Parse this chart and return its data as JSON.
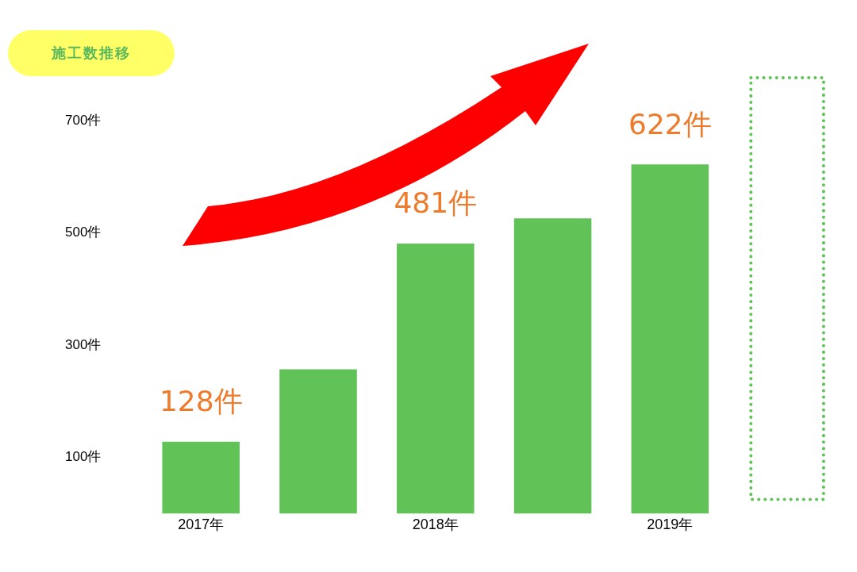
{
  "chart_data": {
    "type": "bar",
    "title": "施工数推移",
    "categories": [
      "2017年",
      null,
      "2018年",
      null,
      "2019年",
      null
    ],
    "values": [
      128,
      257,
      481,
      526,
      622,
      null
    ],
    "value_labels": [
      "128件",
      null,
      "481件",
      null,
      "622件",
      null
    ],
    "color": "#60c257",
    "ylim": [
      0,
      700
    ],
    "yticks": [
      {
        "value": 100,
        "label": "100件"
      },
      {
        "value": 300,
        "label": "300件"
      },
      {
        "value": 500,
        "label": "500件"
      },
      {
        "value": 700,
        "label": "700件"
      }
    ],
    "grid": false,
    "legend": false
  }
}
